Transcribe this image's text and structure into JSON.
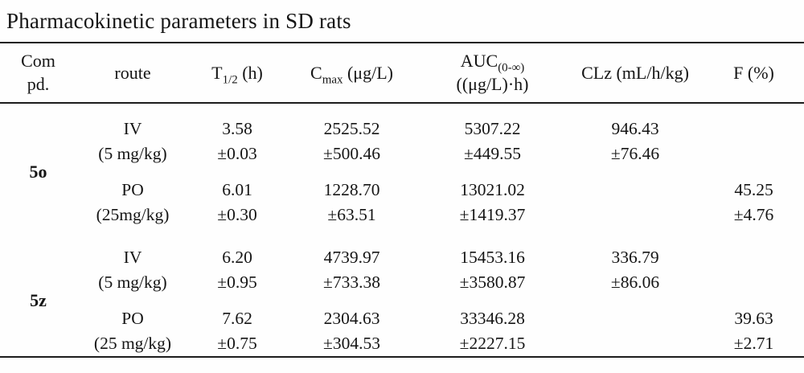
{
  "title": "Pharmacokinetic parameters in SD rats",
  "table": {
    "headers": {
      "compd_line1": "Com",
      "compd_line2": "pd.",
      "route": "route",
      "t12_base": "T",
      "t12_sub": "1/2",
      "t12_unit": " (h)",
      "cmax_base": "C",
      "cmax_sub": "max",
      "cmax_unit": " (μg/L)",
      "auc_base": "AUC",
      "auc_sub": "(0-∞)",
      "auc_unit": "((μg/L)·h)",
      "clz": "CLz (mL/h/kg)",
      "f": "F (%)"
    },
    "groups": [
      {
        "compound": "5o",
        "entries": [
          {
            "route": "IV",
            "dose": "(5 mg/kg)",
            "t12": "3.58",
            "t12_sd": "±0.03",
            "cmax": "2525.52",
            "cmax_sd": "±500.46",
            "auc": "5307.22",
            "auc_sd": "±449.55",
            "clz": "946.43",
            "clz_sd": "±76.46",
            "f": "",
            "f_sd": ""
          },
          {
            "route": "PO",
            "dose": "(25mg/kg)",
            "t12": "6.01",
            "t12_sd": "±0.30",
            "cmax": "1228.70",
            "cmax_sd": "±63.51",
            "auc": "13021.02",
            "auc_sd": "±1419.37",
            "clz": "",
            "clz_sd": "",
            "f": "45.25",
            "f_sd": "±4.76"
          }
        ]
      },
      {
        "compound": "5z",
        "entries": [
          {
            "route": "IV",
            "dose": "(5 mg/kg)",
            "t12": "6.20",
            "t12_sd": "±0.95",
            "cmax": "4739.97",
            "cmax_sd": "±733.38",
            "auc": "15453.16",
            "auc_sd": "±3580.87",
            "clz": "336.79",
            "clz_sd": "±86.06",
            "f": "",
            "f_sd": ""
          },
          {
            "route": "PO",
            "dose": "(25 mg/kg)",
            "t12": "7.62",
            "t12_sd": "±0.75",
            "cmax": "2304.63",
            "cmax_sd": "±304.53",
            "auc": "33346.28",
            "auc_sd": "±2227.15",
            "clz": "",
            "clz_sd": "",
            "f": "39.63",
            "f_sd": "±2.71"
          }
        ]
      }
    ]
  }
}
